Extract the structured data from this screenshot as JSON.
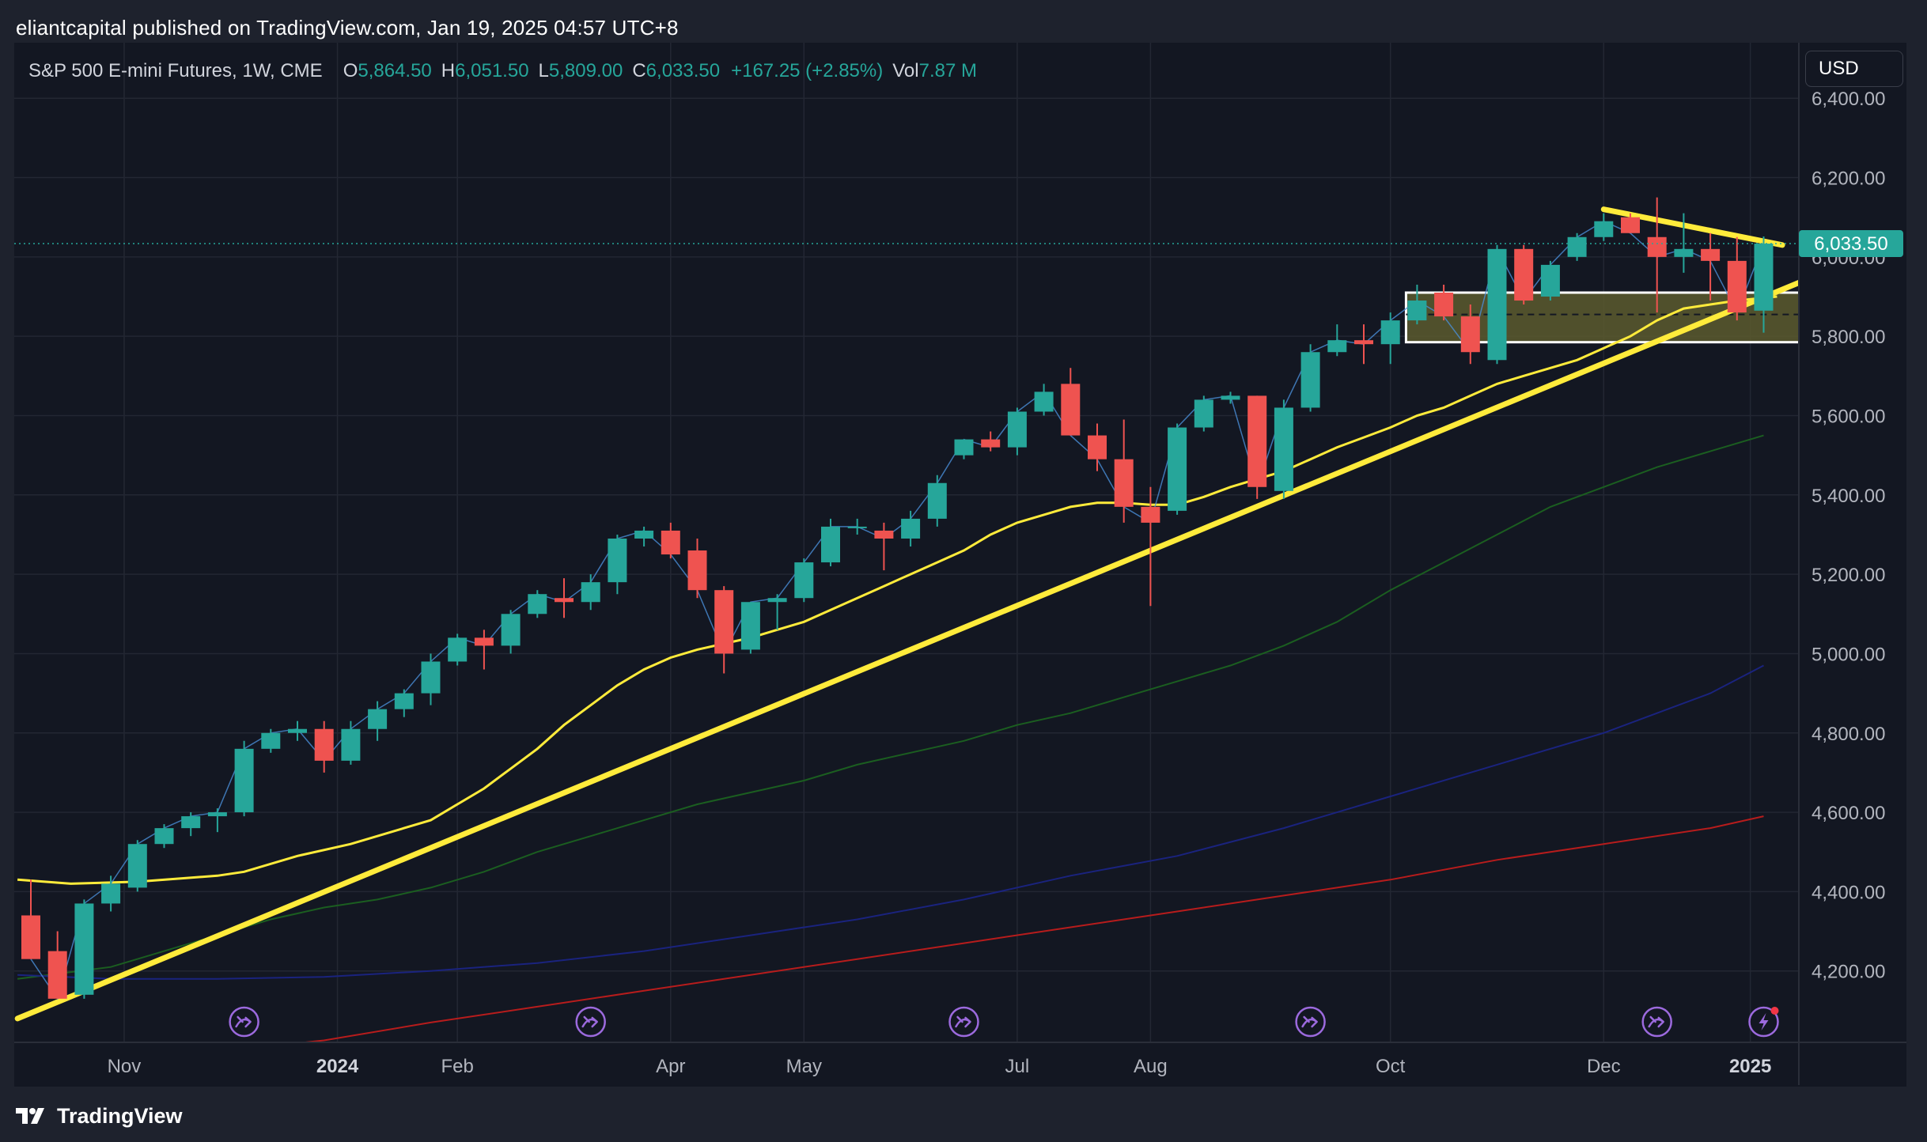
{
  "header": {
    "published_text": "eliantcapital published on TradingView.com, Jan 19, 2025 04:57 UTC+8"
  },
  "legend": {
    "symbol": "S&P 500 E-mini Futures, 1W, CME",
    "open_label": "O",
    "open": "5,864.50",
    "high_label": "H",
    "high": "6,051.50",
    "low_label": "L",
    "low": "5,809.00",
    "close_label": "C",
    "close": "6,033.50",
    "change": "+167.25 (+2.85%)",
    "vol_label": "Vol",
    "vol": "7.87 M"
  },
  "currency": "USD",
  "footer": {
    "brand": "TradingView"
  },
  "colors": {
    "up": "#26a69a",
    "down": "#ef5350",
    "trend": "#ffeb3b",
    "ma_short": "#ffeb3b",
    "ma_green": "#1b5e20",
    "ma_blue": "#1a237e",
    "ma_red": "#b71c1c",
    "zone_fill": "#5c5a2e",
    "price_tag": "#26a69a"
  },
  "chart_data": {
    "type": "candlestick",
    "timeframe": "1W",
    "ylim": [
      4020,
      6540
    ],
    "y_ticks": [
      {
        "value": 4200,
        "label": "4,200.00"
      },
      {
        "value": 4400,
        "label": "4,400.00"
      },
      {
        "value": 4600,
        "label": "4,600.00"
      },
      {
        "value": 4800,
        "label": "4,800.00"
      },
      {
        "value": 5000,
        "label": "5,000.00"
      },
      {
        "value": 5200,
        "label": "5,200.00"
      },
      {
        "value": 5400,
        "label": "5,400.00"
      },
      {
        "value": 5600,
        "label": "5,600.00"
      },
      {
        "value": 5800,
        "label": "5,800.00"
      },
      {
        "value": 6000,
        "label": "6,000.00"
      },
      {
        "value": 6200,
        "label": "6,200.00"
      },
      {
        "value": 6400,
        "label": "6,400.00"
      }
    ],
    "x_ticks": [
      {
        "index": 3.5,
        "label": "Nov",
        "bold": false
      },
      {
        "index": 11.5,
        "label": "2024",
        "bold": true
      },
      {
        "index": 16,
        "label": "Feb",
        "bold": false
      },
      {
        "index": 24,
        "label": "Apr",
        "bold": false
      },
      {
        "index": 29,
        "label": "May",
        "bold": false
      },
      {
        "index": 37,
        "label": "Jul",
        "bold": false
      },
      {
        "index": 42,
        "label": "Aug",
        "bold": false
      },
      {
        "index": 51,
        "label": "Oct",
        "bold": false
      },
      {
        "index": 59,
        "label": "Dec",
        "bold": false
      },
      {
        "index": 64.5,
        "label": "2025",
        "bold": true
      }
    ],
    "candles": [
      {
        "o": 4340,
        "h": 4430,
        "l": 4230,
        "c": 4230
      },
      {
        "o": 4250,
        "h": 4300,
        "l": 4130,
        "c": 4130
      },
      {
        "o": 4140,
        "h": 4380,
        "l": 4130,
        "c": 4370
      },
      {
        "o": 4370,
        "h": 4440,
        "l": 4350,
        "c": 4420
      },
      {
        "o": 4410,
        "h": 4530,
        "l": 4400,
        "c": 4520
      },
      {
        "o": 4520,
        "h": 4570,
        "l": 4510,
        "c": 4560
      },
      {
        "o": 4560,
        "h": 4600,
        "l": 4540,
        "c": 4590
      },
      {
        "o": 4590,
        "h": 4610,
        "l": 4550,
        "c": 4600
      },
      {
        "o": 4600,
        "h": 4780,
        "l": 4590,
        "c": 4760
      },
      {
        "o": 4760,
        "h": 4810,
        "l": 4750,
        "c": 4800
      },
      {
        "o": 4800,
        "h": 4830,
        "l": 4780,
        "c": 4810
      },
      {
        "o": 4810,
        "h": 4830,
        "l": 4700,
        "c": 4730
      },
      {
        "o": 4730,
        "h": 4830,
        "l": 4720,
        "c": 4810
      },
      {
        "o": 4810,
        "h": 4880,
        "l": 4780,
        "c": 4860
      },
      {
        "o": 4860,
        "h": 4910,
        "l": 4840,
        "c": 4900
      },
      {
        "o": 4900,
        "h": 5000,
        "l": 4870,
        "c": 4980
      },
      {
        "o": 4980,
        "h": 5050,
        "l": 4970,
        "c": 5040
      },
      {
        "o": 5040,
        "h": 5060,
        "l": 4960,
        "c": 5020
      },
      {
        "o": 5020,
        "h": 5110,
        "l": 5000,
        "c": 5100
      },
      {
        "o": 5100,
        "h": 5160,
        "l": 5090,
        "c": 5150
      },
      {
        "o": 5140,
        "h": 5190,
        "l": 5090,
        "c": 5130
      },
      {
        "o": 5130,
        "h": 5200,
        "l": 5110,
        "c": 5180
      },
      {
        "o": 5180,
        "h": 5300,
        "l": 5150,
        "c": 5290
      },
      {
        "o": 5290,
        "h": 5320,
        "l": 5270,
        "c": 5310
      },
      {
        "o": 5310,
        "h": 5330,
        "l": 5240,
        "c": 5250
      },
      {
        "o": 5260,
        "h": 5290,
        "l": 5140,
        "c": 5160
      },
      {
        "o": 5160,
        "h": 5170,
        "l": 4950,
        "c": 5000
      },
      {
        "o": 5010,
        "h": 5130,
        "l": 5000,
        "c": 5130
      },
      {
        "o": 5130,
        "h": 5150,
        "l": 5060,
        "c": 5140
      },
      {
        "o": 5140,
        "h": 5240,
        "l": 5130,
        "c": 5230
      },
      {
        "o": 5230,
        "h": 5340,
        "l": 5220,
        "c": 5320
      },
      {
        "o": 5320,
        "h": 5340,
        "l": 5300,
        "c": 5320
      },
      {
        "o": 5310,
        "h": 5330,
        "l": 5210,
        "c": 5290
      },
      {
        "o": 5290,
        "h": 5360,
        "l": 5270,
        "c": 5340
      },
      {
        "o": 5340,
        "h": 5450,
        "l": 5320,
        "c": 5430
      },
      {
        "o": 5500,
        "h": 5540,
        "l": 5490,
        "c": 5540
      },
      {
        "o": 5540,
        "h": 5560,
        "l": 5510,
        "c": 5520
      },
      {
        "o": 5520,
        "h": 5620,
        "l": 5500,
        "c": 5610
      },
      {
        "o": 5610,
        "h": 5680,
        "l": 5600,
        "c": 5660
      },
      {
        "o": 5680,
        "h": 5720,
        "l": 5550,
        "c": 5550
      },
      {
        "o": 5550,
        "h": 5580,
        "l": 5460,
        "c": 5490
      },
      {
        "o": 5490,
        "h": 5590,
        "l": 5330,
        "c": 5370
      },
      {
        "o": 5370,
        "h": 5420,
        "l": 5120,
        "c": 5330
      },
      {
        "o": 5360,
        "h": 5580,
        "l": 5350,
        "c": 5570
      },
      {
        "o": 5570,
        "h": 5650,
        "l": 5560,
        "c": 5640
      },
      {
        "o": 5640,
        "h": 5660,
        "l": 5630,
        "c": 5650
      },
      {
        "o": 5650,
        "h": 5650,
        "l": 5390,
        "c": 5420
      },
      {
        "o": 5410,
        "h": 5640,
        "l": 5390,
        "c": 5620
      },
      {
        "o": 5620,
        "h": 5780,
        "l": 5610,
        "c": 5760
      },
      {
        "o": 5760,
        "h": 5830,
        "l": 5750,
        "c": 5790
      },
      {
        "o": 5790,
        "h": 5830,
        "l": 5730,
        "c": 5780
      },
      {
        "o": 5780,
        "h": 5860,
        "l": 5730,
        "c": 5840
      },
      {
        "o": 5840,
        "h": 5930,
        "l": 5830,
        "c": 5890
      },
      {
        "o": 5910,
        "h": 5930,
        "l": 5840,
        "c": 5850
      },
      {
        "o": 5850,
        "h": 5880,
        "l": 5730,
        "c": 5760
      },
      {
        "o": 5740,
        "h": 6030,
        "l": 5730,
        "c": 6020
      },
      {
        "o": 6020,
        "h": 6030,
        "l": 5880,
        "c": 5890
      },
      {
        "o": 5900,
        "h": 5990,
        "l": 5890,
        "c": 5980
      },
      {
        "o": 6000,
        "h": 6060,
        "l": 5990,
        "c": 6050
      },
      {
        "o": 6050,
        "h": 6110,
        "l": 6040,
        "c": 6090
      },
      {
        "o": 6100,
        "h": 6110,
        "l": 6060,
        "c": 6060
      },
      {
        "o": 6050,
        "h": 6150,
        "l": 5860,
        "c": 6000
      },
      {
        "o": 6000,
        "h": 6110,
        "l": 5960,
        "c": 6020
      },
      {
        "o": 6020,
        "h": 6060,
        "l": 5890,
        "c": 5990
      },
      {
        "o": 5990,
        "h": 6050,
        "l": 5840,
        "c": 5860
      },
      {
        "o": 5864.5,
        "h": 6051.5,
        "l": 5809,
        "c": 6033.5
      }
    ],
    "moving_averages": [
      {
        "key": "ma_short",
        "points": [
          [
            -0.5,
            4430
          ],
          [
            1.5,
            4420
          ],
          [
            4,
            4425
          ],
          [
            7,
            4440
          ],
          [
            8,
            4450
          ],
          [
            10,
            4490
          ],
          [
            12,
            4520
          ],
          [
            14,
            4560
          ],
          [
            15,
            4580
          ],
          [
            16,
            4620
          ],
          [
            17,
            4660
          ],
          [
            18,
            4710
          ],
          [
            19,
            4760
          ],
          [
            20,
            4820
          ],
          [
            21,
            4870
          ],
          [
            22,
            4920
          ],
          [
            23,
            4960
          ],
          [
            24,
            4990
          ],
          [
            25,
            5010
          ],
          [
            26,
            5025
          ],
          [
            27,
            5040
          ],
          [
            28,
            5060
          ],
          [
            29,
            5080
          ],
          [
            30,
            5110
          ],
          [
            31,
            5140
          ],
          [
            32,
            5170
          ],
          [
            33,
            5200
          ],
          [
            34,
            5230
          ],
          [
            35,
            5260
          ],
          [
            36,
            5300
          ],
          [
            37,
            5330
          ],
          [
            38,
            5350
          ],
          [
            39,
            5370
          ],
          [
            40,
            5380
          ],
          [
            41,
            5380
          ],
          [
            42,
            5375
          ],
          [
            43,
            5375
          ],
          [
            44,
            5395
          ],
          [
            45,
            5420
          ],
          [
            46,
            5440
          ],
          [
            47,
            5460
          ],
          [
            48,
            5490
          ],
          [
            49,
            5520
          ],
          [
            50,
            5545
          ],
          [
            51,
            5570
          ],
          [
            52,
            5600
          ],
          [
            53,
            5620
          ],
          [
            54,
            5650
          ],
          [
            55,
            5680
          ],
          [
            56,
            5700
          ],
          [
            57,
            5720
          ],
          [
            58,
            5740
          ],
          [
            59,
            5770
          ],
          [
            60,
            5800
          ],
          [
            61,
            5840
          ],
          [
            62,
            5870
          ],
          [
            63,
            5880
          ],
          [
            64,
            5890
          ],
          [
            65.5,
            5900
          ]
        ]
      },
      {
        "key": "ma_green",
        "points": [
          [
            -0.5,
            4180
          ],
          [
            3,
            4210
          ],
          [
            5,
            4250
          ],
          [
            7,
            4290
          ],
          [
            9,
            4330
          ],
          [
            11,
            4360
          ],
          [
            13,
            4380
          ],
          [
            15,
            4410
          ],
          [
            17,
            4450
          ],
          [
            19,
            4500
          ],
          [
            21,
            4540
          ],
          [
            23,
            4580
          ],
          [
            25,
            4620
          ],
          [
            27,
            4650
          ],
          [
            29,
            4680
          ],
          [
            31,
            4720
          ],
          [
            33,
            4750
          ],
          [
            35,
            4780
          ],
          [
            37,
            4820
          ],
          [
            39,
            4850
          ],
          [
            41,
            4890
          ],
          [
            43,
            4930
          ],
          [
            45,
            4970
          ],
          [
            47,
            5020
          ],
          [
            49,
            5080
          ],
          [
            51,
            5160
          ],
          [
            53,
            5230
          ],
          [
            55,
            5300
          ],
          [
            57,
            5370
          ],
          [
            59,
            5420
          ],
          [
            61,
            5470
          ],
          [
            63,
            5510
          ],
          [
            65,
            5550
          ]
        ]
      },
      {
        "key": "ma_blue",
        "points": [
          [
            -0.5,
            4190
          ],
          [
            3,
            4180
          ],
          [
            7,
            4180
          ],
          [
            11,
            4185
          ],
          [
            15,
            4200
          ],
          [
            19,
            4220
          ],
          [
            23,
            4250
          ],
          [
            27,
            4290
          ],
          [
            31,
            4330
          ],
          [
            35,
            4380
          ],
          [
            39,
            4440
          ],
          [
            43,
            4490
          ],
          [
            47,
            4560
          ],
          [
            51,
            4640
          ],
          [
            55,
            4720
          ],
          [
            59,
            4800
          ],
          [
            63,
            4900
          ],
          [
            65,
            4970
          ]
        ]
      },
      {
        "key": "ma_red",
        "points": [
          [
            7.5,
            4000
          ],
          [
            11,
            4025
          ],
          [
            15,
            4070
          ],
          [
            19,
            4110
          ],
          [
            23,
            4150
          ],
          [
            27,
            4190
          ],
          [
            31,
            4230
          ],
          [
            35,
            4270
          ],
          [
            39,
            4310
          ],
          [
            43,
            4350
          ],
          [
            47,
            4390
          ],
          [
            51,
            4430
          ],
          [
            55,
            4480
          ],
          [
            59,
            4520
          ],
          [
            63,
            4560
          ],
          [
            65,
            4590
          ]
        ]
      }
    ],
    "trendlines": [
      {
        "from": [
          -0.5,
          4080
        ],
        "to": [
          66.5,
          5940
        ]
      },
      {
        "from": [
          59,
          6120
        ],
        "to": [
          65.7,
          6030
        ]
      }
    ],
    "zone": {
      "from_index": 52,
      "to_index": 66.5,
      "high": 5910,
      "low": 5785,
      "mid": 5855
    },
    "last_price": {
      "value": 6033.5,
      "label": "6,033.50"
    },
    "event_markers": [
      {
        "index": 8,
        "kind": "dividend"
      },
      {
        "index": 21,
        "kind": "dividend"
      },
      {
        "index": 35,
        "kind": "dividend"
      },
      {
        "index": 48,
        "kind": "dividend"
      },
      {
        "index": 61,
        "kind": "dividend"
      },
      {
        "index": 65,
        "kind": "earnings"
      }
    ]
  }
}
